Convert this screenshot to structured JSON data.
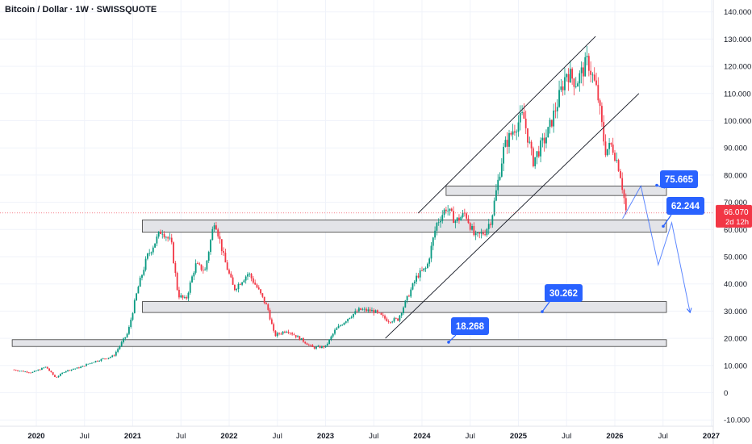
{
  "header": {
    "title": "Bitcoin / Dollar · 1W · SWISSQUOTE"
  },
  "chart_data": {
    "type": "candlestick",
    "symbol": "Bitcoin / Dollar",
    "interval": "1W",
    "exchange": "SWISSQUOTE",
    "ylim": [
      -10000,
      140000
    ],
    "y_ticks": [
      {
        "value": 140000,
        "label": "140.000"
      },
      {
        "value": 130000,
        "label": "130.000"
      },
      {
        "value": 120000,
        "label": "120.000"
      },
      {
        "value": 110000,
        "label": "110.000"
      },
      {
        "value": 100000,
        "label": "100.000"
      },
      {
        "value": 90000,
        "label": "90.000"
      },
      {
        "value": 80000,
        "label": "80.000"
      },
      {
        "value": 70000,
        "label": "70.000"
      },
      {
        "value": 60000,
        "label": "60.000"
      },
      {
        "value": 50000,
        "label": "50.000"
      },
      {
        "value": 40000,
        "label": "40.000"
      },
      {
        "value": 30000,
        "label": "30.000"
      },
      {
        "value": 20000,
        "label": "20.000"
      },
      {
        "value": 10000,
        "label": "10.000"
      },
      {
        "value": 0,
        "label": "0"
      },
      {
        "value": -10000,
        "label": "-10.000"
      }
    ],
    "xlim": [
      2019.75,
      2027.3
    ],
    "x_ticks": [
      {
        "value": 2020.0,
        "label": "2020",
        "bold": true
      },
      {
        "value": 2020.5,
        "label": "Jul",
        "bold": false
      },
      {
        "value": 2021.0,
        "label": "2021",
        "bold": true
      },
      {
        "value": 2021.5,
        "label": "Jul",
        "bold": false
      },
      {
        "value": 2022.0,
        "label": "2022",
        "bold": true
      },
      {
        "value": 2022.5,
        "label": "Jul",
        "bold": false
      },
      {
        "value": 2023.0,
        "label": "2023",
        "bold": true
      },
      {
        "value": 2023.5,
        "label": "Jul",
        "bold": false
      },
      {
        "value": 2024.0,
        "label": "2024",
        "bold": true
      },
      {
        "value": 2024.5,
        "label": "Jul",
        "bold": false
      },
      {
        "value": 2025.0,
        "label": "2025",
        "bold": true
      },
      {
        "value": 2025.5,
        "label": "Jul",
        "bold": false
      },
      {
        "value": 2026.0,
        "label": "2026",
        "bold": true
      },
      {
        "value": 2026.5,
        "label": "Jul",
        "bold": false
      },
      {
        "value": 2027.0,
        "label": "2027",
        "bold": true
      }
    ],
    "price_path": [
      [
        2019.75,
        8500
      ],
      [
        2019.95,
        7400
      ],
      [
        2020.1,
        9500
      ],
      [
        2020.2,
        5500
      ],
      [
        2020.3,
        8000
      ],
      [
        2020.45,
        9300
      ],
      [
        2020.6,
        11500
      ],
      [
        2020.8,
        13500
      ],
      [
        2020.95,
        22000
      ],
      [
        2021.05,
        38000
      ],
      [
        2021.15,
        50000
      ],
      [
        2021.3,
        60000
      ],
      [
        2021.4,
        55000
      ],
      [
        2021.47,
        36000
      ],
      [
        2021.55,
        34000
      ],
      [
        2021.65,
        47000
      ],
      [
        2021.75,
        45000
      ],
      [
        2021.85,
        64000
      ],
      [
        2021.95,
        49000
      ],
      [
        2022.05,
        38000
      ],
      [
        2022.2,
        44000
      ],
      [
        2022.3,
        38000
      ],
      [
        2022.4,
        31000
      ],
      [
        2022.47,
        21000
      ],
      [
        2022.6,
        23000
      ],
      [
        2022.75,
        19500
      ],
      [
        2022.87,
        16500
      ],
      [
        2023.0,
        17000
      ],
      [
        2023.1,
        23000
      ],
      [
        2023.25,
        28000
      ],
      [
        2023.35,
        30500
      ],
      [
        2023.5,
        30000
      ],
      [
        2023.65,
        26500
      ],
      [
        2023.75,
        27000
      ],
      [
        2023.85,
        35000
      ],
      [
        2023.95,
        43000
      ],
      [
        2024.05,
        46000
      ],
      [
        2024.15,
        62000
      ],
      [
        2024.25,
        68000
      ],
      [
        2024.35,
        63000
      ],
      [
        2024.45,
        66000
      ],
      [
        2024.55,
        57000
      ],
      [
        2024.65,
        59000
      ],
      [
        2024.72,
        64000
      ],
      [
        2024.85,
        90000
      ],
      [
        2024.95,
        97000
      ],
      [
        2025.05,
        102000
      ],
      [
        2025.15,
        85000
      ],
      [
        2025.3,
        95000
      ],
      [
        2025.4,
        106000
      ],
      [
        2025.5,
        118000
      ],
      [
        2025.6,
        114000
      ],
      [
        2025.72,
        122000
      ],
      [
        2025.82,
        110000
      ],
      [
        2025.9,
        89000
      ],
      [
        2025.97,
        91000
      ],
      [
        2026.05,
        82000
      ],
      [
        2026.12,
        66070
      ]
    ],
    "levels": [
      {
        "value": 75665,
        "label": "75.665",
        "zone": [
          72500,
          76000
        ],
        "x_start": 2024.25
      },
      {
        "value": 62244,
        "label": "62.244",
        "zone": [
          59000,
          63500
        ],
        "x_start": 2021.1
      },
      {
        "value": 30262,
        "label": "30.262",
        "zone": [
          29500,
          33500
        ],
        "x_start": 2021.1
      },
      {
        "value": 18268,
        "label": "18.268",
        "zone": [
          17000,
          19500
        ],
        "x_start": 2019.75
      }
    ],
    "channel_lines": [
      [
        [
          2023.96,
          66000
        ],
        [
          2025.8,
          131000
        ]
      ],
      [
        [
          2023.62,
          20000
        ],
        [
          2026.25,
          110000
        ]
      ]
    ],
    "projection": [
      [
        2026.08,
        64000
      ],
      [
        2026.27,
        76000
      ],
      [
        2026.45,
        47000
      ],
      [
        2026.59,
        62500
      ],
      [
        2026.78,
        29500
      ]
    ],
    "current_price": {
      "value": 66070,
      "label": "66.070",
      "countdown": "2d 12h"
    }
  }
}
